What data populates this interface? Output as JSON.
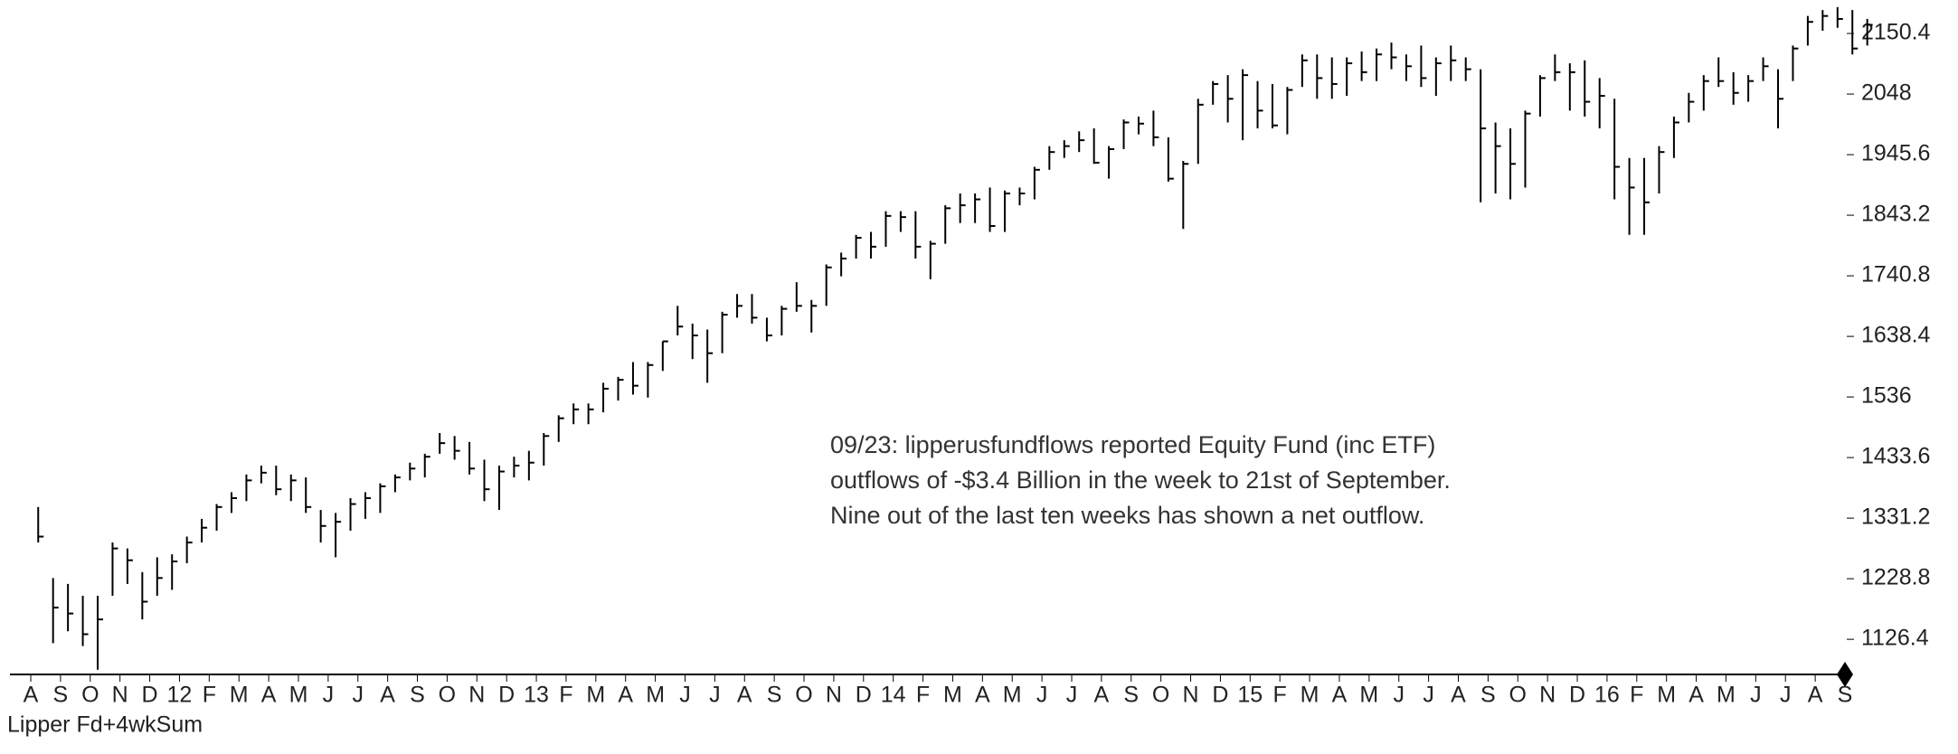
{
  "chart_data": {
    "type": "hlc",
    "annotation": [
      "09/23: lipperusfundflows reported Equity Fund (inc ETF)",
      "outflows of -$3.4 Billion in the week to 21st of September.",
      "Nine out of the last ten weeks has shown a net outflow."
    ],
    "indicator_label": "Lipper Fd+4wkSum",
    "color": "#000000",
    "ylim": [
      1067,
      2207
    ],
    "yticks": [
      1126.4,
      1228.8,
      1331.2,
      1433.6,
      1536,
      1638.4,
      1740.8,
      1843.2,
      1945.6,
      2048,
      2150.4
    ],
    "xlim": [
      -0.7,
      61
    ],
    "xticks": [
      {
        "value": 0,
        "label": "A"
      },
      {
        "value": 1,
        "label": "S"
      },
      {
        "value": 2,
        "label": "O"
      },
      {
        "value": 3,
        "label": "N"
      },
      {
        "value": 4,
        "label": "D"
      },
      {
        "value": 5,
        "label": "12"
      },
      {
        "value": 6,
        "label": "F"
      },
      {
        "value": 7,
        "label": "M"
      },
      {
        "value": 8,
        "label": "A"
      },
      {
        "value": 9,
        "label": "M"
      },
      {
        "value": 10,
        "label": "J"
      },
      {
        "value": 11,
        "label": "J"
      },
      {
        "value": 12,
        "label": "A"
      },
      {
        "value": 13,
        "label": "S"
      },
      {
        "value": 14,
        "label": "O"
      },
      {
        "value": 15,
        "label": "N"
      },
      {
        "value": 16,
        "label": "D"
      },
      {
        "value": 17,
        "label": "13"
      },
      {
        "value": 18,
        "label": "F"
      },
      {
        "value": 19,
        "label": "M"
      },
      {
        "value": 20,
        "label": "A"
      },
      {
        "value": 21,
        "label": "M"
      },
      {
        "value": 22,
        "label": "J"
      },
      {
        "value": 23,
        "label": "J"
      },
      {
        "value": 24,
        "label": "A"
      },
      {
        "value": 25,
        "label": "S"
      },
      {
        "value": 26,
        "label": "O"
      },
      {
        "value": 27,
        "label": "N"
      },
      {
        "value": 28,
        "label": "D"
      },
      {
        "value": 29,
        "label": "14"
      },
      {
        "value": 30,
        "label": "F"
      },
      {
        "value": 31,
        "label": "M"
      },
      {
        "value": 32,
        "label": "A"
      },
      {
        "value": 33,
        "label": "M"
      },
      {
        "value": 34,
        "label": "J"
      },
      {
        "value": 35,
        "label": "J"
      },
      {
        "value": 36,
        "label": "A"
      },
      {
        "value": 37,
        "label": "S"
      },
      {
        "value": 38,
        "label": "O"
      },
      {
        "value": 39,
        "label": "N"
      },
      {
        "value": 40,
        "label": "D"
      },
      {
        "value": 41,
        "label": "15"
      },
      {
        "value": 42,
        "label": "F"
      },
      {
        "value": 43,
        "label": "M"
      },
      {
        "value": 44,
        "label": "A"
      },
      {
        "value": 45,
        "label": "M"
      },
      {
        "value": 46,
        "label": "J"
      },
      {
        "value": 47,
        "label": "J"
      },
      {
        "value": 48,
        "label": "A"
      },
      {
        "value": 49,
        "label": "S"
      },
      {
        "value": 50,
        "label": "O"
      },
      {
        "value": 51,
        "label": "N"
      },
      {
        "value": 52,
        "label": "D"
      },
      {
        "value": 53,
        "label": "16"
      },
      {
        "value": 54,
        "label": "F"
      },
      {
        "value": 55,
        "label": "M"
      },
      {
        "value": 56,
        "label": "A"
      },
      {
        "value": 57,
        "label": "M"
      },
      {
        "value": 58,
        "label": "J"
      },
      {
        "value": 59,
        "label": "J"
      },
      {
        "value": 60,
        "label": "A"
      },
      {
        "value": 61,
        "label": "S"
      }
    ],
    "high": [
      1350,
      1230,
      1220,
      1200,
      1200,
      1290,
      1280,
      1240,
      1265,
      1270,
      1300,
      1330,
      1355,
      1375,
      1405,
      1420,
      1420,
      1405,
      1400,
      1345,
      1340,
      1365,
      1375,
      1390,
      1405,
      1425,
      1440,
      1475,
      1470,
      1460,
      1430,
      1420,
      1435,
      1445,
      1475,
      1505,
      1525,
      1525,
      1560,
      1570,
      1595,
      1595,
      1630,
      1690,
      1660,
      1650,
      1680,
      1710,
      1710,
      1670,
      1690,
      1730,
      1700,
      1760,
      1780,
      1810,
      1815,
      1850,
      1850,
      1850,
      1800,
      1860,
      1880,
      1880,
      1890,
      1885,
      1890,
      1925,
      1960,
      1970,
      1985,
      1990,
      1960,
      2005,
      2010,
      2020,
      1975,
      1935,
      2040,
      2070,
      2080,
      2090,
      2070,
      2065,
      2060,
      2115,
      2115,
      2110,
      2110,
      2120,
      2125,
      2135,
      2115,
      2130,
      2110,
      2130,
      2110,
      2090,
      2000,
      1990,
      2020,
      2080,
      2115,
      2100,
      2105,
      2075,
      2040,
      1940,
      1940,
      1960,
      2010,
      2050,
      2080,
      2110,
      2085,
      2080,
      2110,
      2090,
      2130,
      2180,
      2190,
      2195,
      2190,
      2175
    ],
    "low": [
      1290,
      1120,
      1140,
      1115,
      1075,
      1200,
      1220,
      1160,
      1200,
      1210,
      1255,
      1290,
      1310,
      1340,
      1360,
      1390,
      1370,
      1360,
      1340,
      1290,
      1265,
      1310,
      1330,
      1340,
      1375,
      1395,
      1400,
      1440,
      1430,
      1405,
      1360,
      1345,
      1400,
      1395,
      1420,
      1460,
      1490,
      1490,
      1510,
      1530,
      1540,
      1535,
      1580,
      1640,
      1600,
      1560,
      1610,
      1670,
      1660,
      1630,
      1640,
      1680,
      1645,
      1690,
      1740,
      1770,
      1770,
      1790,
      1815,
      1770,
      1735,
      1795,
      1830,
      1830,
      1815,
      1815,
      1860,
      1870,
      1920,
      1940,
      1950,
      1930,
      1905,
      1955,
      1980,
      1960,
      1900,
      1820,
      1930,
      2030,
      2000,
      1970,
      1990,
      1990,
      1980,
      2060,
      2040,
      2040,
      2045,
      2070,
      2070,
      2090,
      2070,
      2060,
      2045,
      2070,
      2070,
      1865,
      1880,
      1870,
      1890,
      2010,
      2070,
      2020,
      2010,
      1990,
      1870,
      1810,
      1810,
      1880,
      1940,
      2000,
      2020,
      2060,
      2030,
      2035,
      2070,
      1990,
      2070,
      2130,
      2155,
      2160,
      2115,
      2130
    ],
    "close": [
      1300,
      1180,
      1170,
      1135,
      1160,
      1280,
      1260,
      1190,
      1230,
      1258,
      1290,
      1315,
      1350,
      1365,
      1395,
      1408,
      1380,
      1395,
      1350,
      1318,
      1325,
      1355,
      1365,
      1385,
      1400,
      1415,
      1435,
      1458,
      1445,
      1415,
      1380,
      1410,
      1420,
      1425,
      1470,
      1500,
      1515,
      1515,
      1550,
      1565,
      1555,
      1590,
      1630,
      1655,
      1640,
      1610,
      1675,
      1690,
      1670,
      1640,
      1685,
      1690,
      1690,
      1755,
      1770,
      1805,
      1790,
      1842,
      1840,
      1790,
      1795,
      1855,
      1860,
      1870,
      1825,
      1880,
      1880,
      1920,
      1950,
      1960,
      1970,
      1932,
      1955,
      2000,
      1998,
      1975,
      1905,
      1930,
      2030,
      2065,
      2040,
      2080,
      2020,
      1995,
      2055,
      2105,
      2075,
      2065,
      2100,
      2085,
      2115,
      2110,
      2095,
      2075,
      2100,
      2105,
      2090,
      1990,
      1960,
      1930,
      2015,
      2075,
      2085,
      2085,
      2035,
      2045,
      1925,
      1890,
      1865,
      1950,
      2000,
      2035,
      2070,
      2070,
      2050,
      2070,
      2095,
      2040,
      2125,
      2170,
      2180,
      2175,
      2125,
      2165
    ]
  }
}
